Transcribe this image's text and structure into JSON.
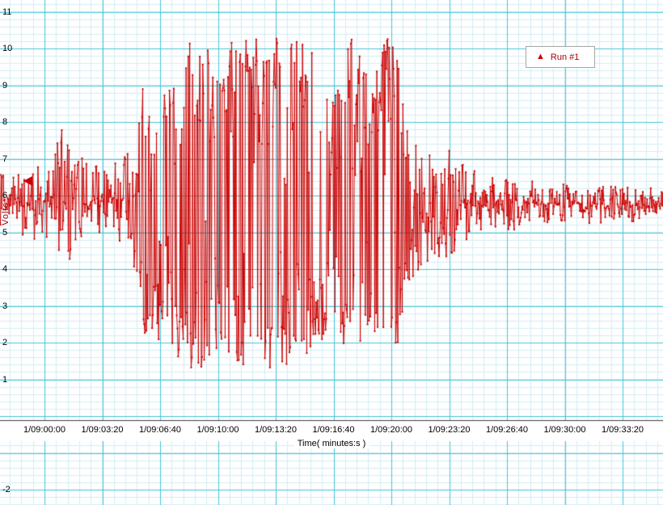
{
  "chart_data": {
    "type": "line",
    "title": "",
    "xlabel": "Time( minutes:s )",
    "ylabel": "Volts",
    "legend": {
      "position": "top-right",
      "entries": [
        {
          "label": "Run #1",
          "color": "#cc0000",
          "marker": "triangle-up-icon",
          "glyph": "▲"
        }
      ]
    },
    "series": [
      {
        "name": "Run #1",
        "color": "#cc0000",
        "baseline": 5.65,
        "sample_interval_s": 2.5,
        "envelope": [
          [
            -160,
            4.9,
            6.6
          ],
          [
            0,
            4.8,
            6.8
          ],
          [
            40,
            4.4,
            7.2
          ],
          [
            55,
            3.6,
            8.1
          ],
          [
            70,
            4.0,
            7.4
          ],
          [
            100,
            4.3,
            7.3
          ],
          [
            130,
            4.6,
            7.1
          ],
          [
            170,
            4.8,
            6.9
          ],
          [
            210,
            4.9,
            6.7
          ],
          [
            250,
            4.8,
            6.9
          ],
          [
            290,
            4.4,
            7.2
          ],
          [
            320,
            3.6,
            7.8
          ],
          [
            345,
            2.1,
            9.3
          ],
          [
            365,
            2.5,
            8.4
          ],
          [
            395,
            2.0,
            8.8
          ],
          [
            425,
            2.2,
            9.0
          ],
          [
            455,
            1.7,
            9.7
          ],
          [
            480,
            1.4,
            10.1
          ],
          [
            510,
            1.25,
            10.35
          ],
          [
            550,
            1.25,
            10.35
          ],
          [
            590,
            1.6,
            9.9
          ],
          [
            620,
            2.2,
            9.3
          ],
          [
            650,
            1.3,
            10.3
          ],
          [
            690,
            1.25,
            10.35
          ],
          [
            730,
            1.25,
            10.35
          ],
          [
            770,
            1.3,
            10.2
          ],
          [
            810,
            1.25,
            10.35
          ],
          [
            850,
            1.25,
            10.35
          ],
          [
            890,
            1.3,
            10.3
          ],
          [
            930,
            1.4,
            10.2
          ],
          [
            960,
            2.0,
            9.3
          ],
          [
            990,
            2.6,
            8.6
          ],
          [
            1020,
            2.2,
            9.0
          ],
          [
            1050,
            1.4,
            10.2
          ],
          [
            1080,
            1.3,
            10.3
          ],
          [
            1105,
            1.8,
            9.6
          ],
          [
            1130,
            2.6,
            8.8
          ],
          [
            1160,
            1.8,
            9.7
          ],
          [
            1185,
            1.3,
            10.35
          ],
          [
            1215,
            1.4,
            10.2
          ],
          [
            1245,
            2.9,
            8.4
          ],
          [
            1275,
            3.5,
            7.8
          ],
          [
            1305,
            3.9,
            7.4
          ],
          [
            1340,
            4.2,
            7.1
          ],
          [
            1380,
            4.3,
            7.0
          ],
          [
            1410,
            4.0,
            7.5
          ],
          [
            1440,
            4.5,
            6.9
          ],
          [
            1480,
            4.7,
            6.8
          ],
          [
            1530,
            4.9,
            6.65
          ],
          [
            1580,
            5.0,
            6.55
          ],
          [
            1640,
            5.1,
            6.45
          ],
          [
            1720,
            5.2,
            6.35
          ],
          [
            1800,
            5.25,
            6.3
          ],
          [
            1900,
            5.25,
            6.28
          ],
          [
            2000,
            5.3,
            6.22
          ],
          [
            2150,
            5.3,
            6.2
          ]
        ]
      }
    ],
    "x_ticks": [
      {
        "label": "1/09:00:00",
        "t": 0
      },
      {
        "label": "1/09:03:20",
        "t": 200
      },
      {
        "label": "1/09:06:40",
        "t": 400
      },
      {
        "label": "1/09:10:00",
        "t": 600
      },
      {
        "label": "1/09:13:20",
        "t": 800
      },
      {
        "label": "1/09:16:40",
        "t": 1000
      },
      {
        "label": "1/09:20:00",
        "t": 1200
      },
      {
        "label": "1/09:23:20",
        "t": 1400
      },
      {
        "label": "1/09:26:40",
        "t": 1600
      },
      {
        "label": "1/09:30:00",
        "t": 1800
      },
      {
        "label": "1/09:33:20",
        "t": 2000
      }
    ],
    "y_ticks": [
      {
        "v": 11,
        "label": "11"
      },
      {
        "v": 10,
        "label": "10"
      },
      {
        "v": 9,
        "label": "9"
      },
      {
        "v": 8,
        "label": "8"
      },
      {
        "v": 7,
        "label": "7"
      },
      {
        "v": 6,
        "label": "6"
      },
      {
        "v": 5,
        "label": "5"
      },
      {
        "v": 4,
        "label": "4"
      },
      {
        "v": 3,
        "label": "3"
      },
      {
        "v": 2,
        "label": "2"
      },
      {
        "v": 1,
        "label": "1"
      },
      {
        "v": -2,
        "label": "-2"
      }
    ],
    "ylim": [
      -2.4,
      11.3
    ],
    "x_range_s": [
      -160,
      2146
    ],
    "marker_left": {
      "value": 6.4,
      "color": "#cc0000"
    },
    "grid": {
      "on": true,
      "major_color": "#45c5d8",
      "minor_color": "#d2eef4",
      "x_major_step_s": 200,
      "x_minor_step_s": 40,
      "y_major_step": 1,
      "y_minor_step": 0.2
    },
    "axis_color": "#404040"
  }
}
